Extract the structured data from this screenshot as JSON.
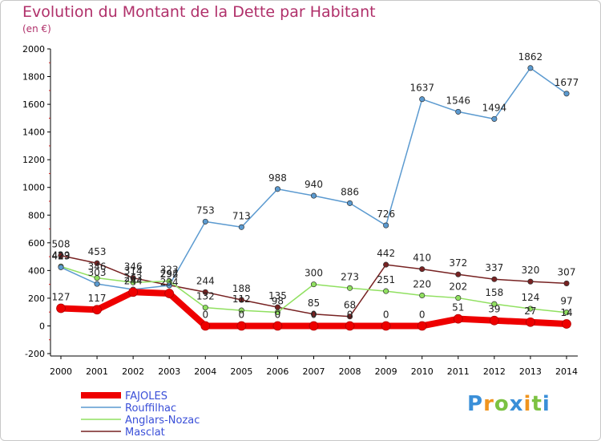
{
  "header": {
    "title": "Evolution du Montant de la Dette par Habitant",
    "subtitle": "(en €)"
  },
  "logo": {
    "letters": [
      "P",
      "r",
      "o",
      "x",
      "i",
      "t",
      "i"
    ],
    "colors": [
      "#3a8fd8",
      "#f0941e",
      "#7cc242",
      "#3a8fd8",
      "#f0941e",
      "#7cc242",
      "#3a8fd8"
    ]
  },
  "chart_data": {
    "type": "line",
    "x": [
      "2000",
      "2001",
      "2002",
      "2003",
      "2004",
      "2005",
      "2006",
      "2007",
      "2008",
      "2009",
      "2010",
      "2011",
      "2012",
      "2013",
      "2014"
    ],
    "ylim": [
      -200,
      2000
    ],
    "yticks": [
      -200,
      0,
      200,
      400,
      600,
      800,
      1000,
      1200,
      1400,
      1600,
      1800,
      2000
    ],
    "grid": false,
    "legend_position": "bottom-left",
    "series": [
      {
        "name": "FAJOLES",
        "color": "#ee0000",
        "values": [
          127,
          117,
          244,
          234,
          0,
          0,
          0,
          0,
          0,
          0,
          0,
          51,
          39,
          27,
          14
        ],
        "labels": [
          "127",
          "117",
          "244",
          "234",
          "0",
          "0",
          "0",
          "0",
          "0",
          "0",
          "0",
          "51",
          "39",
          "27",
          "14"
        ]
      },
      {
        "name": "Rouffilhac",
        "color": "#5b9ad0",
        "values": [
          423,
          303,
          263,
          292,
          753,
          713,
          988,
          940,
          886,
          726,
          1637,
          1546,
          1494,
          1862,
          1677
        ],
        "labels": [
          "423",
          "303",
          "263",
          "292",
          "753",
          "713",
          "988",
          "940",
          "886",
          "726",
          "1637",
          "1546",
          "1494",
          "1862",
          "1677"
        ]
      },
      {
        "name": "Anglars-Nozac",
        "color": "#90e060",
        "values": [
          429,
          346,
          314,
          323,
          132,
          112,
          98,
          300,
          273,
          251,
          220,
          202,
          158,
          124,
          97
        ],
        "labels": [
          "429",
          "346",
          "314",
          "323",
          "132",
          "112",
          "98",
          "300",
          "273",
          "251",
          "220",
          "202",
          "158",
          "124",
          "97"
        ]
      },
      {
        "name": "Masclat",
        "color": "#772222",
        "values": [
          508,
          453,
          346,
          294,
          244,
          188,
          135,
          85,
          68,
          442,
          410,
          372,
          337,
          320,
          307
        ],
        "labels": [
          "508",
          "453",
          "346",
          "294",
          "244",
          "188",
          "135",
          "85",
          "68",
          "442",
          "410",
          "372",
          "337",
          "320",
          "307"
        ]
      }
    ]
  }
}
